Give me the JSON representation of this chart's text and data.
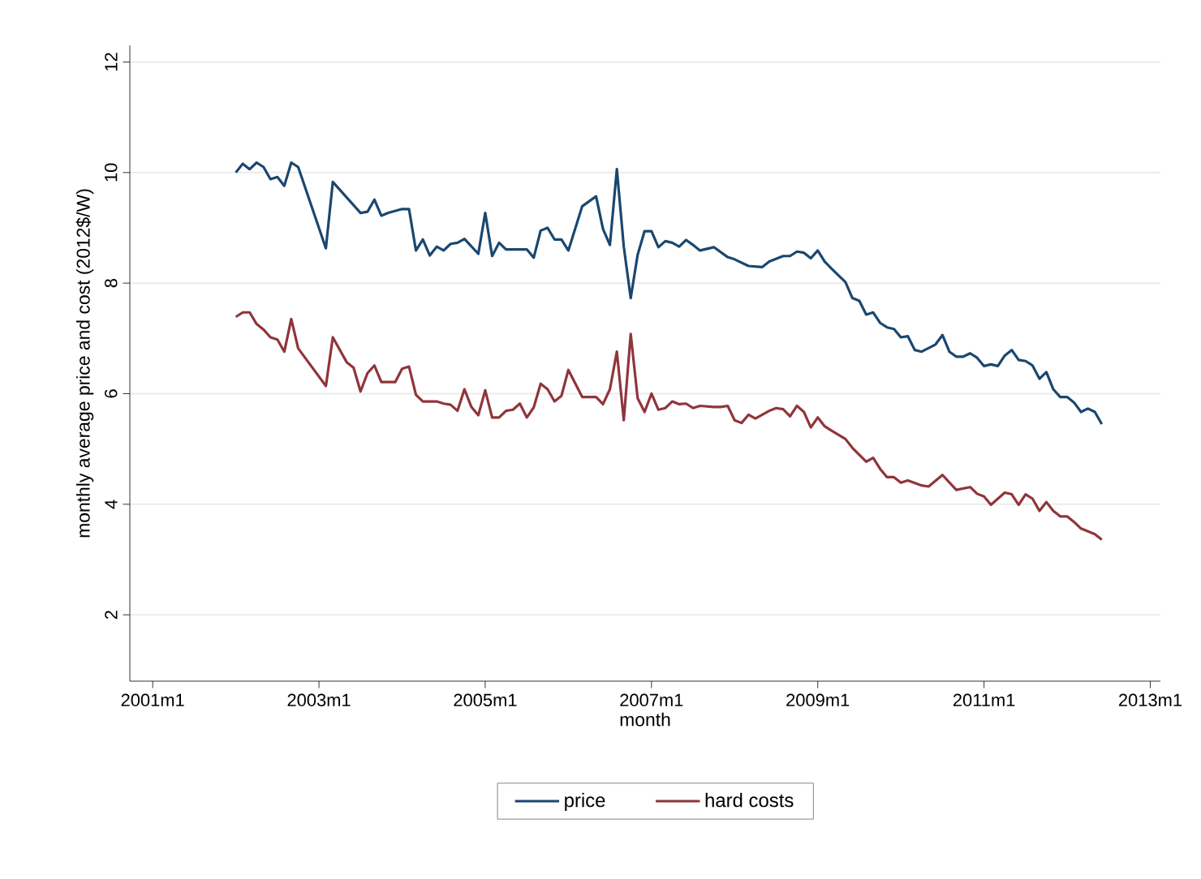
{
  "chart_data": {
    "type": "line",
    "xlabel": "month",
    "ylabel": "monthly average price and cost (2012$/W)",
    "xlim": [
      "2000-09-22",
      "2013-02-15"
    ],
    "ylim": [
      0.8,
      12.3
    ],
    "xticks": [
      {
        "value": "2001-01",
        "label": "2001m1"
      },
      {
        "value": "2003-01",
        "label": "2003m1"
      },
      {
        "value": "2005-01",
        "label": "2005m1"
      },
      {
        "value": "2007-01",
        "label": "2007m1"
      },
      {
        "value": "2009-01",
        "label": "2009m1"
      },
      {
        "value": "2011-01",
        "label": "2011m1"
      },
      {
        "value": "2013-01",
        "label": "2013m1"
      }
    ],
    "yticks": [
      2,
      4,
      6,
      8,
      10,
      12
    ],
    "grid": "y",
    "legend": "bottom",
    "series": [
      {
        "name": "price",
        "color": "#1a476f",
        "x": [
          "2002-01",
          "2002-02",
          "2002-03",
          "2002-04",
          "2002-05",
          "2002-06",
          "2002-07",
          "2002-08",
          "2002-09",
          "2002-10",
          "2003-02",
          "2003-03",
          "2003-07",
          "2003-08",
          "2003-09",
          "2003-10",
          "2003-11",
          "2004-01",
          "2004-02",
          "2004-03",
          "2004-04",
          "2004-05",
          "2004-06",
          "2004-07",
          "2004-08",
          "2004-09",
          "2004-10",
          "2004-12",
          "2005-01",
          "2005-02",
          "2005-03",
          "2005-04",
          "2005-07",
          "2005-08",
          "2005-09",
          "2005-10",
          "2005-11",
          "2005-12",
          "2006-01",
          "2006-03",
          "2006-05",
          "2006-06",
          "2006-07",
          "2006-08",
          "2006-09",
          "2006-10",
          "2006-11",
          "2006-12",
          "2007-01",
          "2007-02",
          "2007-03",
          "2007-04",
          "2007-05",
          "2007-06",
          "2007-07",
          "2007-08",
          "2007-10",
          "2007-12",
          "2008-01",
          "2008-03",
          "2008-05",
          "2008-06",
          "2008-08",
          "2008-09",
          "2008-10",
          "2008-11",
          "2008-12",
          "2009-01",
          "2009-02",
          "2009-03",
          "2009-05",
          "2009-06",
          "2009-07",
          "2009-08",
          "2009-09",
          "2009-10",
          "2009-11",
          "2009-12",
          "2010-01",
          "2010-02",
          "2010-03",
          "2010-04",
          "2010-06",
          "2010-07",
          "2010-08",
          "2010-09",
          "2010-10",
          "2010-11",
          "2010-12",
          "2011-01",
          "2011-02",
          "2011-03",
          "2011-04",
          "2011-05",
          "2011-06",
          "2011-07",
          "2011-08",
          "2011-09",
          "2011-10",
          "2011-11",
          "2011-12",
          "2012-01",
          "2012-02",
          "2012-03",
          "2012-04",
          "2012-05",
          "2012-06"
        ],
        "values": [
          10.0,
          10.16,
          10.06,
          10.18,
          10.1,
          9.88,
          9.92,
          9.76,
          10.18,
          10.1,
          8.63,
          9.83,
          9.27,
          9.29,
          9.51,
          9.22,
          9.27,
          9.34,
          9.34,
          8.59,
          8.79,
          8.5,
          8.66,
          8.59,
          8.71,
          8.73,
          8.8,
          8.53,
          9.27,
          8.49,
          8.73,
          8.61,
          8.61,
          8.46,
          8.95,
          9.0,
          8.79,
          8.79,
          8.59,
          9.39,
          9.57,
          8.98,
          8.69,
          10.06,
          8.66,
          7.73,
          8.51,
          8.94,
          8.94,
          8.65,
          8.76,
          8.73,
          8.66,
          8.78,
          8.69,
          8.59,
          8.65,
          8.47,
          8.43,
          8.31,
          8.29,
          8.39,
          8.49,
          8.49,
          8.57,
          8.55,
          8.45,
          8.59,
          8.39,
          8.26,
          8.02,
          7.73,
          7.68,
          7.43,
          7.47,
          7.28,
          7.2,
          7.17,
          7.02,
          7.04,
          6.79,
          6.76,
          6.89,
          7.06,
          6.76,
          6.67,
          6.67,
          6.73,
          6.65,
          6.5,
          6.53,
          6.5,
          6.69,
          6.79,
          6.61,
          6.59,
          6.51,
          6.27,
          6.39,
          6.08,
          5.94,
          5.94,
          5.84,
          5.67,
          5.73,
          5.67,
          5.45
        ]
      },
      {
        "name": "hard costs",
        "color": "#90353b",
        "x": [
          "2002-01",
          "2002-02",
          "2002-03",
          "2002-04",
          "2002-05",
          "2002-06",
          "2002-07",
          "2002-08",
          "2002-09",
          "2002-10",
          "2003-02",
          "2003-03",
          "2003-05",
          "2003-06",
          "2003-07",
          "2003-08",
          "2003-09",
          "2003-10",
          "2003-12",
          "2004-01",
          "2004-02",
          "2004-03",
          "2004-04",
          "2004-06",
          "2004-07",
          "2004-08",
          "2004-09",
          "2004-10",
          "2004-11",
          "2004-12",
          "2005-01",
          "2005-02",
          "2005-03",
          "2005-04",
          "2005-05",
          "2005-06",
          "2005-07",
          "2005-08",
          "2005-09",
          "2005-10",
          "2005-11",
          "2005-12",
          "2006-01",
          "2006-03",
          "2006-05",
          "2006-06",
          "2006-07",
          "2006-08",
          "2006-09",
          "2006-10",
          "2006-11",
          "2006-12",
          "2007-01",
          "2007-02",
          "2007-03",
          "2007-04",
          "2007-05",
          "2007-06",
          "2007-07",
          "2007-08",
          "2007-10",
          "2007-11",
          "2007-12",
          "2008-01",
          "2008-02",
          "2008-03",
          "2008-04",
          "2008-06",
          "2008-07",
          "2008-08",
          "2008-09",
          "2008-10",
          "2008-11",
          "2008-12",
          "2009-01",
          "2009-02",
          "2009-03",
          "2009-05",
          "2009-06",
          "2009-08",
          "2009-09",
          "2009-10",
          "2009-11",
          "2009-12",
          "2010-01",
          "2010-02",
          "2010-04",
          "2010-05",
          "2010-07",
          "2010-09",
          "2010-11",
          "2010-12",
          "2011-01",
          "2011-02",
          "2011-04",
          "2011-05",
          "2011-06",
          "2011-07",
          "2011-08",
          "2011-09",
          "2011-10",
          "2011-11",
          "2011-12",
          "2012-01",
          "2012-02",
          "2012-03",
          "2012-04",
          "2012-05",
          "2012-06"
        ],
        "values": [
          7.39,
          7.47,
          7.47,
          7.26,
          7.16,
          7.02,
          6.98,
          6.76,
          7.35,
          6.82,
          6.14,
          7.02,
          6.57,
          6.47,
          6.04,
          6.37,
          6.51,
          6.21,
          6.21,
          6.45,
          6.49,
          5.98,
          5.86,
          5.86,
          5.82,
          5.8,
          5.69,
          6.08,
          5.76,
          5.61,
          6.06,
          5.57,
          5.57,
          5.69,
          5.71,
          5.82,
          5.57,
          5.75,
          6.18,
          6.08,
          5.86,
          5.96,
          6.43,
          5.94,
          5.94,
          5.81,
          6.08,
          6.76,
          5.52,
          7.08,
          5.92,
          5.67,
          6.0,
          5.71,
          5.74,
          5.86,
          5.81,
          5.82,
          5.74,
          5.78,
          5.76,
          5.76,
          5.78,
          5.52,
          5.47,
          5.62,
          5.55,
          5.69,
          5.74,
          5.72,
          5.59,
          5.78,
          5.67,
          5.39,
          5.57,
          5.41,
          5.33,
          5.18,
          5.02,
          4.77,
          4.84,
          4.64,
          4.49,
          4.49,
          4.39,
          4.43,
          4.34,
          4.32,
          4.53,
          4.26,
          4.31,
          4.19,
          4.14,
          3.99,
          4.21,
          4.18,
          3.99,
          4.18,
          4.1,
          3.88,
          4.04,
          3.88,
          3.78,
          3.78,
          3.68,
          3.56,
          3.51,
          3.46,
          3.36
        ]
      }
    ]
  }
}
